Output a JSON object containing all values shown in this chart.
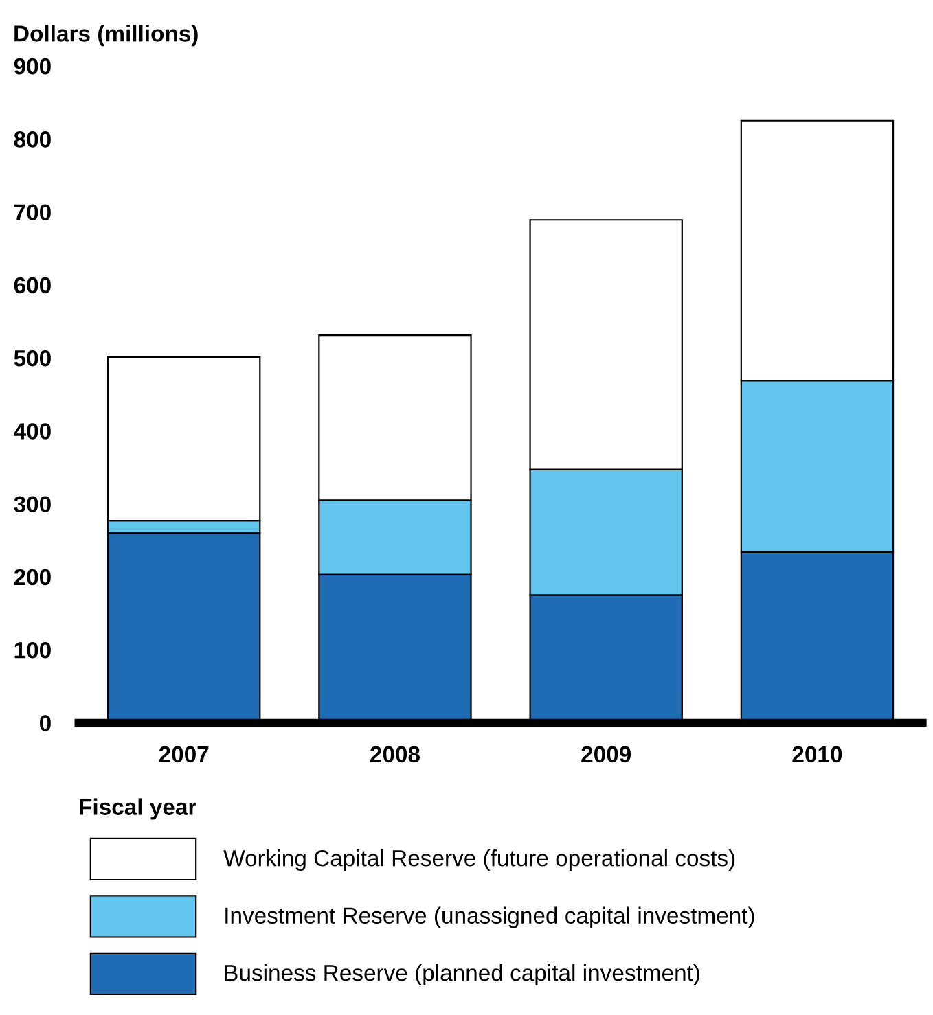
{
  "chart_data": {
    "type": "bar",
    "stacked": true,
    "xlabel": "Fiscal year",
    "ylabel": "Dollars (millions)",
    "categories": [
      "2007",
      "2008",
      "2009",
      "2010"
    ],
    "series": [
      {
        "name": "Business Reserve (planned capital investment)",
        "color": "#1f6cb4",
        "values": [
          260,
          203,
          175,
          234
        ]
      },
      {
        "name": "Investment Reserve (unassigned capital investment)",
        "color": "#63c6ee",
        "values": [
          17,
          102,
          172,
          235
        ]
      },
      {
        "name": "Working Capital Reserve (future operational costs)",
        "color": "#ffffff",
        "values": [
          224,
          226,
          342,
          356
        ]
      }
    ],
    "ylim": [
      0,
      900
    ],
    "yticks": [
      0,
      100,
      200,
      300,
      400,
      500,
      600,
      700,
      800,
      900
    ],
    "grid": false,
    "legend": "bottom"
  }
}
